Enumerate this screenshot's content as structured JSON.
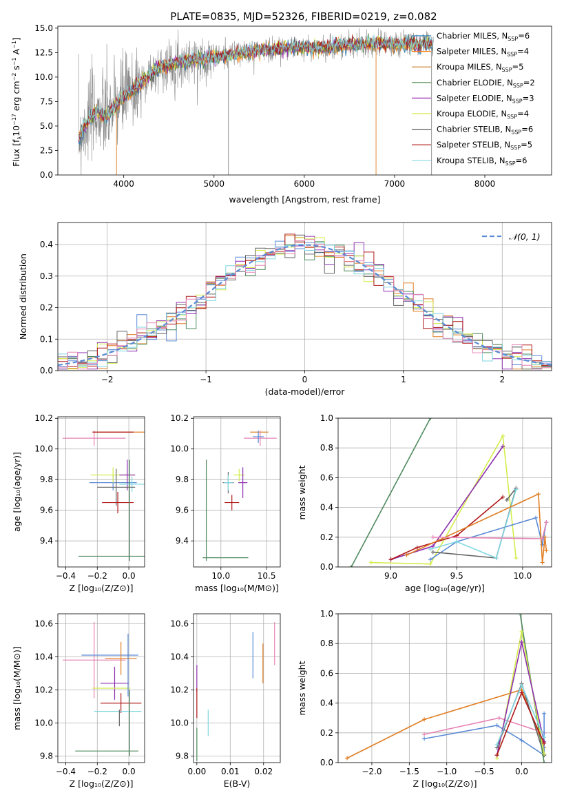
{
  "figure": {
    "title": "PLATE=0835, MJD=52326, FIBERID=0219, z=0.082"
  },
  "colors": {
    "chabrier_miles": "#1f77b4",
    "salpeter_miles": "#ff7f0e",
    "kroupa_miles": "#c87d26",
    "chabrier_elodie": "#4f8a4f",
    "salpeter_elodie": "#9a27b0",
    "kroupa_elodie": "#d8e84a",
    "chabrier_stelib": "#555555",
    "salpeter_stelib": "#b01010",
    "kroupa_stelib": "#8ad8e8",
    "blue": "#5b8bd6",
    "orange": "#e07d22",
    "green": "#4f8a5f",
    "purple": "#8d2fb0",
    "yellow": "#d4ec4a",
    "gray": "#666666",
    "red": "#b01818",
    "cyan": "#7fd6e0",
    "pink": "#e683b4",
    "spectrum_gray": "#888888",
    "normal_dashed": "#5b8bd6"
  },
  "chart_data": [
    {
      "id": "spectrum",
      "type": "line",
      "title": "PLATE=0835, MJD=52326, FIBERID=0219, z=0.082",
      "xlabel": "wavelength [Angstrom, rest frame]",
      "ylabel": "Flux [f$_\\lambda$10$^{-17}$ erg cm$^{-2}$ s$^{-1}$ A$^{-1}$]",
      "ylabel_parts": [
        "Flux [f",
        "λ",
        "10",
        "−17",
        " erg cm",
        "−2",
        " s",
        "−1",
        " A",
        "−1",
        "]"
      ],
      "xlim": [
        3270,
        8740
      ],
      "ylim": [
        0,
        15.2
      ],
      "xticks": [
        4000,
        5000,
        6000,
        7000,
        8000
      ],
      "yticks": [
        0.0,
        2.5,
        5.0,
        7.5,
        10.0,
        12.5,
        15.0
      ],
      "ytick_labels": [
        "0.0",
        "2.5",
        "5.0",
        "7.5",
        "10.0",
        "12.5",
        "15.0"
      ],
      "continuum": {
        "x": [
          3500,
          3600,
          3700,
          3800,
          3900,
          4000,
          4100,
          4200,
          4300,
          4400,
          4500,
          4600,
          4800,
          5000,
          5200,
          5400,
          5600,
          5800,
          6000,
          6200,
          6400,
          6600,
          6800,
          7000,
          7200,
          7400
        ],
        "y": [
          3.8,
          5.6,
          6.4,
          6.0,
          6.9,
          8.0,
          8.6,
          9.5,
          10.3,
          11.0,
          11.2,
          11.5,
          11.8,
          12.0,
          12.3,
          12.6,
          12.8,
          13.0,
          13.0,
          13.0,
          13.2,
          13.3,
          13.4,
          13.4,
          13.4,
          13.4
        ]
      },
      "legend_placement": "top-right",
      "legend": [
        {
          "label": "Chabrier MILES, N",
          "sub": "SSP",
          "tail": "=6",
          "color_key": "chabrier_miles"
        },
        {
          "label": "Salpeter MILES, N",
          "sub": "SSP",
          "tail": "=4",
          "color_key": "salpeter_miles"
        },
        {
          "label": "Kroupa MILES, N",
          "sub": "SSP",
          "tail": "=5",
          "color_key": "kroupa_miles"
        },
        {
          "label": "Chabrier ELODIE, N",
          "sub": "SSP",
          "tail": "=2",
          "color_key": "chabrier_elodie"
        },
        {
          "label": "Salpeter ELODIE, N",
          "sub": "SSP",
          "tail": "=3",
          "color_key": "salpeter_elodie"
        },
        {
          "label": "Kroupa ELODIE, N",
          "sub": "SSP",
          "tail": "=4",
          "color_key": "kroupa_elodie"
        },
        {
          "label": "Chabrier STELIB, N",
          "sub": "SSP",
          "tail": "=6",
          "color_key": "chabrier_stelib"
        },
        {
          "label": "Salpeter STELIB, N",
          "sub": "SSP",
          "tail": "=5",
          "color_key": "salpeter_stelib"
        },
        {
          "label": "Kroupa STELIB, N",
          "sub": "SSP",
          "tail": "=6",
          "color_key": "kroupa_stelib"
        }
      ]
    },
    {
      "id": "residuals",
      "type": "histogram",
      "xlabel": "(data-model)/error",
      "ylabel": "Normed distribution",
      "xlim": [
        -2.5,
        2.5
      ],
      "ylim": [
        0,
        0.47
      ],
      "xticks": [
        -2,
        -1,
        0,
        1,
        2
      ],
      "xtick_labels": [
        "−2",
        "−1",
        "0",
        "1",
        "2"
      ],
      "yticks": [
        0.0,
        0.1,
        0.2,
        0.3,
        0.4
      ],
      "ytick_labels": [
        "0.0",
        "0.1",
        "0.2",
        "0.3",
        "0.4"
      ],
      "grid": true,
      "bin_width": 0.1,
      "reference": {
        "label": "𝒩(0, 1)",
        "mean": 0,
        "sigma": 1
      },
      "series_colors": [
        "blue",
        "orange",
        "green",
        "purple",
        "yellow",
        "gray",
        "red",
        "cyan",
        "pink"
      ]
    },
    {
      "id": "age_vs_Z",
      "type": "errorbar",
      "xlabel": "Z [log₁₀(Z/Z⊙)]",
      "ylabel": "age  [log₁₀(age/yr)]",
      "xlim": [
        -0.45,
        0.1
      ],
      "ylim": [
        9.23,
        10.21
      ],
      "xticks": [
        -0.4,
        -0.2,
        0.0
      ],
      "xtick_labels": [
        "−0.4",
        "−0.2",
        "0.0"
      ],
      "yticks": [
        9.4,
        9.6,
        9.8,
        10.0,
        10.2
      ],
      "ytick_labels": [
        "9.4",
        "9.6",
        "9.8",
        "10.0",
        "10.2"
      ],
      "grid": true,
      "points": [
        {
          "color": "orange",
          "x": -0.05,
          "xerr": 0.18,
          "y": 10.11,
          "yerr": 0.0
        },
        {
          "color": "pink",
          "x": -0.22,
          "xerr": 0.2,
          "y": 10.07,
          "yerr": 0.05
        },
        {
          "color": "red",
          "x": -0.1,
          "xerr": 0.13,
          "y": 10.11,
          "yerr": 0.0
        },
        {
          "color": "blue",
          "x": -0.1,
          "xerr": 0.15,
          "y": 9.78,
          "yerr": 0.05
        },
        {
          "color": "yellow",
          "x": -0.1,
          "xerr": 0.14,
          "y": 9.83,
          "yerr": 0.05
        },
        {
          "color": "purple",
          "x": -0.01,
          "xerr": 0.05,
          "y": 9.83,
          "yerr": 0.1
        },
        {
          "color": "cyan",
          "x": 0.02,
          "xerr": 0.08,
          "y": 9.77,
          "yerr": 0.05
        },
        {
          "color": "gray",
          "x": -0.08,
          "xerr": 0.12,
          "y": 9.75,
          "yerr": 0.12
        },
        {
          "color": "red",
          "x": -0.07,
          "xerr": 0.1,
          "y": 9.65,
          "yerr": 0.07
        },
        {
          "color": "green",
          "x": -0.1,
          "xerr": 0.22,
          "y": 9.3,
          "yerr": 0.0
        },
        {
          "color": "green",
          "x": 0.005,
          "xerr": 0.0,
          "y": 9.6,
          "yerr": 0.33
        }
      ]
    },
    {
      "id": "age_vs_mass",
      "type": "errorbar",
      "xlabel": "mass [log₁₀(M/M⊙)]",
      "ylabel": "",
      "xlim": [
        9.7,
        10.65
      ],
      "ylim": [
        9.23,
        10.21
      ],
      "xticks": [
        10.0,
        10.5
      ],
      "xtick_labels": [
        "10.0",
        "10.5"
      ],
      "yticks": [
        9.4,
        9.6,
        9.8,
        10.0,
        10.2
      ],
      "ytick_labels": [
        "9.4",
        "9.6",
        "9.8",
        "10.0",
        "10.2"
      ],
      "grid": true,
      "points": [
        {
          "color": "orange",
          "x": 10.42,
          "xerr": 0.1,
          "y": 10.11,
          "yerr": 0.0
        },
        {
          "color": "pink",
          "x": 10.43,
          "xerr": 0.18,
          "y": 10.07,
          "yerr": 0.05
        },
        {
          "color": "blue",
          "x": 10.41,
          "xerr": 0.06,
          "y": 10.08,
          "yerr": 0.04
        },
        {
          "color": "red",
          "x": 10.12,
          "xerr": 0.08,
          "y": 9.65,
          "yerr": 0.05
        },
        {
          "color": "yellow",
          "x": 10.2,
          "xerr": 0.06,
          "y": 9.83,
          "yerr": 0.04
        },
        {
          "color": "purple",
          "x": 10.24,
          "xerr": 0.05,
          "y": 9.78,
          "yerr": 0.1
        },
        {
          "color": "gray",
          "x": 10.08,
          "xerr": 0.06,
          "y": 9.78,
          "yerr": 0.07
        },
        {
          "color": "cyan",
          "x": 10.08,
          "xerr": 0.05,
          "y": 9.78,
          "yerr": 0.05
        },
        {
          "color": "green",
          "x": 10.05,
          "xerr": 0.25,
          "y": 9.29,
          "yerr": 0.0
        },
        {
          "color": "green",
          "x": 9.84,
          "xerr": 0.0,
          "y": 9.6,
          "yerr": 0.33
        }
      ]
    },
    {
      "id": "mass_weight_vs_age",
      "type": "line",
      "xlabel": "age  [log₁₀(age/yr)]",
      "ylabel": "mass weight",
      "xlim": [
        8.6,
        10.22
      ],
      "ylim": [
        0,
        1.0
      ],
      "xticks": [
        9.0,
        9.5,
        10.0
      ],
      "xtick_labels": [
        "9.0",
        "9.5",
        "10.0"
      ],
      "yticks": [
        0.0,
        0.2,
        0.4,
        0.6,
        0.8,
        1.0
      ],
      "ytick_labels": [
        "0.0",
        "0.2",
        "0.4",
        "0.6",
        "0.8",
        "1.0"
      ],
      "grid": true,
      "series": [
        {
          "color": "green",
          "x": [
            8.7,
            9.3
          ],
          "y": [
            0.0,
            1.0
          ]
        },
        {
          "color": "yellow",
          "x": [
            8.85,
            9.3,
            9.85,
            9.95
          ],
          "y": [
            0.03,
            0.02,
            0.88,
            0.06
          ]
        },
        {
          "color": "purple",
          "x": [
            9.0,
            9.32,
            9.85
          ],
          "y": [
            0.05,
            0.14,
            0.81
          ]
        },
        {
          "color": "red",
          "x": [
            9.0,
            9.2,
            9.5,
            9.85
          ],
          "y": [
            0.05,
            0.13,
            0.21,
            0.47
          ]
        },
        {
          "color": "blue",
          "x": [
            9.3,
            9.5,
            10.1,
            10.15,
            10.18
          ],
          "y": [
            0.05,
            0.17,
            0.33,
            0.15,
            0.3
          ]
        },
        {
          "color": "gray",
          "x": [
            9.32,
            9.8,
            9.95,
            9.88
          ],
          "y": [
            0.1,
            0.06,
            0.53,
            0.45
          ]
        },
        {
          "color": "cyan",
          "x": [
            9.3,
            9.5,
            9.8,
            9.95
          ],
          "y": [
            0.12,
            0.17,
            0.06,
            0.52
          ]
        },
        {
          "color": "orange",
          "x": [
            9.12,
            10.12,
            10.15,
            10.17,
            10.18
          ],
          "y": [
            0.08,
            0.49,
            0.03,
            0.2,
            0.11
          ]
        },
        {
          "color": "pink",
          "x": [
            9.32,
            10.15,
            10.18
          ],
          "y": [
            0.2,
            0.19,
            0.3
          ]
        }
      ]
    },
    {
      "id": "mass_vs_Z",
      "type": "errorbar",
      "xlabel": "Z [log₁₀(Z/Z⊙)]",
      "ylabel": "mass [log₁₀(M/M⊙)]",
      "xlim": [
        -0.45,
        0.1
      ],
      "ylim": [
        9.76,
        10.66
      ],
      "xticks": [
        -0.4,
        -0.2,
        0.0
      ],
      "xtick_labels": [
        "−0.4",
        "−0.2",
        "0.0"
      ],
      "yticks": [
        9.8,
        10.0,
        10.2,
        10.4,
        10.6
      ],
      "ytick_labels": [
        "9.8",
        "10.0",
        "10.2",
        "10.4",
        "10.6"
      ],
      "grid": true,
      "points": [
        {
          "color": "pink",
          "x": -0.22,
          "xerr": 0.2,
          "y": 10.38,
          "yerr": 0.23
        },
        {
          "color": "blue",
          "x": -0.12,
          "xerr": 0.18,
          "y": 10.41,
          "yerr": 0.0
        },
        {
          "color": "orange",
          "x": -0.05,
          "xerr": 0.1,
          "y": 10.39,
          "yerr": 0.1
        },
        {
          "color": "purple",
          "x": -0.09,
          "xerr": 0.09,
          "y": 10.24,
          "yerr": 0.1
        },
        {
          "color": "yellow",
          "x": -0.11,
          "xerr": 0.12,
          "y": 10.21,
          "yerr": 0.0
        },
        {
          "color": "red",
          "x": -0.05,
          "xerr": 0.13,
          "y": 10.12,
          "yerr": 0.06
        },
        {
          "color": "cyan",
          "x": -0.07,
          "xerr": 0.15,
          "y": 10.07,
          "yerr": 0.0
        },
        {
          "color": "gray",
          "x": -0.06,
          "xerr": 0.0,
          "y": 10.03,
          "yerr": 0.05
        },
        {
          "color": "blue",
          "x": -0.005,
          "xerr": 0.0,
          "y": 10.35,
          "yerr": 0.19
        },
        {
          "color": "green",
          "x": -0.14,
          "xerr": 0.2,
          "y": 9.83,
          "yerr": 0.0
        },
        {
          "color": "green",
          "x": 0.005,
          "xerr": 0.0,
          "y": 10.0,
          "yerr": 0.2
        }
      ]
    },
    {
      "id": "mass_vs_ebv",
      "type": "errorbar",
      "xlabel": "E(B-V)",
      "ylabel": "",
      "xlim": [
        -0.001,
        0.025
      ],
      "ylim": [
        9.76,
        10.66
      ],
      "xticks": [
        0.0,
        0.01,
        0.02
      ],
      "xtick_labels": [
        "0.00",
        "0.01",
        "0.02"
      ],
      "yticks": [
        9.8,
        10.0,
        10.2,
        10.4,
        10.6
      ],
      "ytick_labels": [
        "9.8",
        "10.0",
        "10.2",
        "10.4",
        "10.6"
      ],
      "grid": true,
      "points": [
        {
          "color": "pink",
          "x": 0.0233,
          "xerr": 0.0,
          "y": 10.48,
          "yerr": 0.13
        },
        {
          "color": "blue",
          "x": 0.0168,
          "xerr": 0.0,
          "y": 10.41,
          "yerr": 0.14
        },
        {
          "color": "orange",
          "x": 0.0198,
          "xerr": 0.0,
          "y": 10.36,
          "yerr": 0.12
        },
        {
          "color": "purple",
          "x": 0.0,
          "xerr": 0.0,
          "y": 10.27,
          "yerr": 0.08
        },
        {
          "color": "red",
          "x": 0.0,
          "xerr": 0.0,
          "y": 10.12,
          "yerr": 0.09
        },
        {
          "color": "cyan",
          "x": 0.0034,
          "xerr": 0.0,
          "y": 10.0,
          "yerr": 0.08
        },
        {
          "color": "green",
          "x": 0.0,
          "xerr": 0.0,
          "y": 9.87,
          "yerr": 0.1
        }
      ]
    },
    {
      "id": "mass_weight_vs_Z",
      "type": "line",
      "xlabel": "Z [log₁₀(Z/Z⊙)]",
      "ylabel": "mass weight",
      "xlim": [
        -2.45,
        0.4
      ],
      "ylim": [
        0,
        1.0
      ],
      "xticks": [
        -2.0,
        -1.5,
        -1.0,
        -0.5,
        0.0
      ],
      "xtick_labels": [
        "−2.0",
        "−1.5",
        "−1.0",
        "−0.5",
        "0.0"
      ],
      "yticks": [
        0.0,
        0.2,
        0.4,
        0.6,
        0.8,
        1.0
      ],
      "ytick_labels": [
        "0.0",
        "0.2",
        "0.4",
        "0.6",
        "0.8",
        "1.0"
      ],
      "grid": true,
      "series": [
        {
          "color": "orange",
          "x": [
            -2.33,
            -1.3,
            0.0,
            0.3,
            0.3
          ],
          "y": [
            0.03,
            0.29,
            0.49,
            0.1,
            0.05
          ]
        },
        {
          "color": "pink",
          "x": [
            -1.3,
            -0.3,
            0.3
          ],
          "y": [
            0.19,
            0.3,
            0.2
          ]
        },
        {
          "color": "blue",
          "x": [
            -1.3,
            -0.33,
            0.0,
            0.3,
            0.3
          ],
          "y": [
            0.16,
            0.25,
            0.15,
            0.05,
            0.33
          ]
        },
        {
          "color": "gray",
          "x": [
            -0.33,
            0.0,
            0.3
          ],
          "y": [
            0.1,
            0.53,
            0.05
          ]
        },
        {
          "color": "green",
          "x": [
            -0.02,
            0.3
          ],
          "y": [
            1.0,
            0.0
          ]
        },
        {
          "color": "yellow",
          "x": [
            -0.33,
            0.0,
            0.3
          ],
          "y": [
            0.03,
            0.88,
            0.06
          ]
        },
        {
          "color": "purple",
          "x": [
            -0.33,
            0.0,
            0.3
          ],
          "y": [
            0.05,
            0.81,
            0.14
          ]
        },
        {
          "color": "red",
          "x": [
            -0.33,
            0.0,
            0.3
          ],
          "y": [
            0.05,
            0.47,
            0.13
          ]
        },
        {
          "color": "cyan",
          "x": [
            -0.33,
            0.0,
            0.3
          ],
          "y": [
            0.12,
            0.52,
            0.17
          ]
        }
      ]
    }
  ]
}
